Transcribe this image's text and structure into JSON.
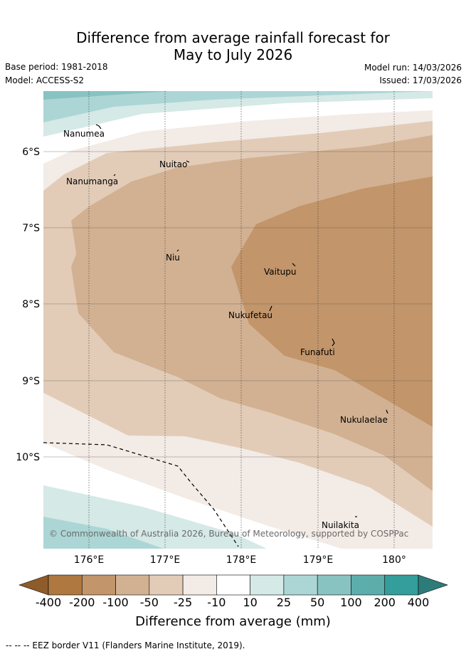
{
  "title": {
    "line1": "Difference from average rainfall forecast for",
    "line2": "May to July 2026"
  },
  "meta": {
    "base_period": "Base period: 1981-2018",
    "model": "Model: ACCESS-S2",
    "model_run": "Model run: 14/03/2026",
    "issued": "Issued: 17/03/2026"
  },
  "map": {
    "copyright": "© Commonwealth of Australia 2026, Bureau of Meteorology, supported by COSPPac",
    "lat_labels": [
      "6°S",
      "7°S",
      "8°S",
      "9°S",
      "10°S"
    ],
    "lon_labels": [
      "176°E",
      "177°E",
      "178°E",
      "179°E",
      "180°"
    ],
    "places": {
      "nanumea": "Nanumea",
      "nuitao": "Nuitao",
      "nanumanga": "Nanumanga",
      "niu": "Niu",
      "vaitupu": "Vaitupu",
      "nukufetau": "Nukufetau",
      "funafuti": "Funafuti",
      "nukulaelae": "Nukulaelae",
      "nuilakita": "Nuilakita"
    }
  },
  "colorbar": {
    "title": "Difference from average (mm)",
    "ticks": [
      "-400",
      "-200",
      "-100",
      "-50",
      "-25",
      "-10",
      "10",
      "25",
      "50",
      "100",
      "200",
      "400"
    ],
    "colors": [
      "#af7840",
      "#c2956a",
      "#d2b192",
      "#e2ccb8",
      "#f3ebe6",
      "#ffffff",
      "#d5e9e7",
      "#acd6d5",
      "#88c3c2",
      "#5daeab",
      "#339e9b"
    ],
    "extend_low": "#8e5b2b",
    "extend_high": "#2e7c7a"
  },
  "legend_note": "--  --  -- EEZ border V11 (Flanders Marine Institute, 2019)."
}
